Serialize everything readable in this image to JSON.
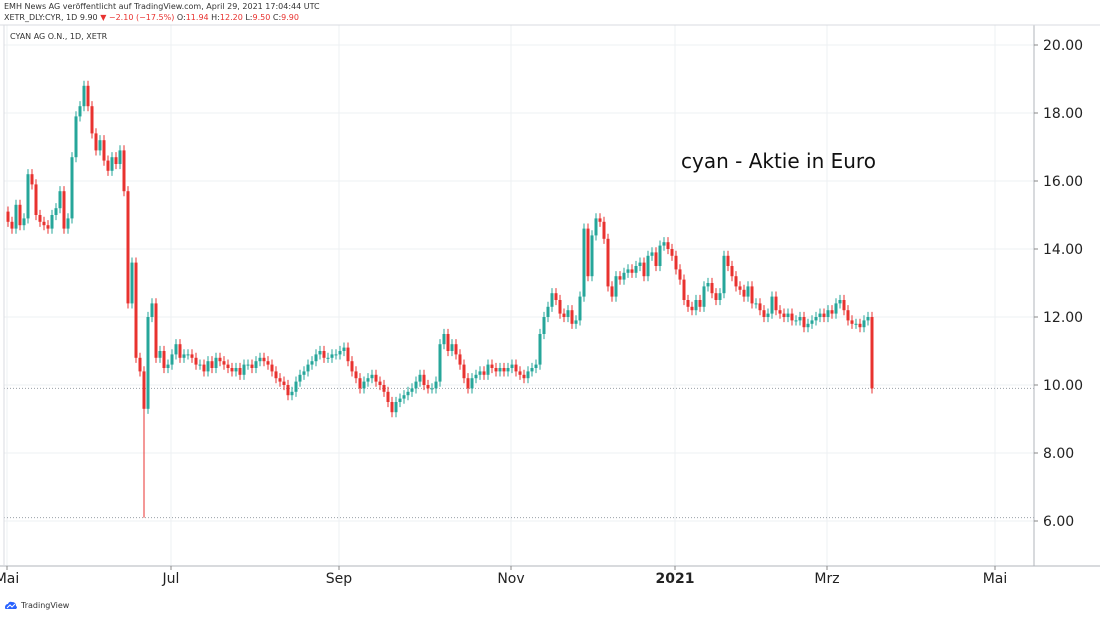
{
  "header": {
    "published": "EMH News AG veröffentlicht auf TradingView.com, April 29, 2021 17:04:44 UTC",
    "symbol_line": "XETR_DLY:CYR, 1D 9.90",
    "change": "−2.10 (−17.5%)",
    "o_label": "O:",
    "o": "11.94",
    "h_label": "H:",
    "h": "12.20",
    "l_label": "L:",
    "l": "9.50",
    "c_label": "C:",
    "c": "9.90"
  },
  "instrument": "CYAN AG O.N., 1D, XETR",
  "footer": {
    "logo_text": "TradingView"
  },
  "colors": {
    "up": "#26a69a",
    "down": "#e8322f",
    "grid": "#eef0f3",
    "axis": "#555555"
  },
  "chart_data": {
    "type": "candlestick",
    "title": "cyan - Aktie in Euro",
    "y_ticks": [
      "20.00",
      "18.00",
      "16.00",
      "14.00",
      "12.00",
      "10.00",
      "8.00",
      "6.00"
    ],
    "ylim": [
      5.0,
      20.5
    ],
    "x_labels": [
      {
        "label": "Mai",
        "bar": 0
      },
      {
        "label": "Jul",
        "bar": 41
      },
      {
        "label": "Sep",
        "bar": 83
      },
      {
        "label": "Nov",
        "bar": 126
      },
      {
        "label": "2021",
        "bar": 167,
        "bold": true
      },
      {
        "label": "Mrz",
        "bar": 205
      },
      {
        "label": "Mai",
        "bar": 247
      }
    ],
    "reference_lines": [
      9.9,
      6.1
    ],
    "closes": [
      14.8,
      14.6,
      15.3,
      14.7,
      14.9,
      16.2,
      15.9,
      15.0,
      14.8,
      14.7,
      14.6,
      15.0,
      15.2,
      15.7,
      14.6,
      14.9,
      16.7,
      17.9,
      18.2,
      18.8,
      18.2,
      17.4,
      16.9,
      17.2,
      16.6,
      16.3,
      16.7,
      16.5,
      16.9,
      15.7,
      12.4,
      13.6,
      10.8,
      10.4,
      9.3,
      12.0,
      12.4,
      10.8,
      11.0,
      10.5,
      10.6,
      10.9,
      11.2,
      10.8,
      10.9,
      10.9,
      10.8,
      10.6,
      10.6,
      10.4,
      10.7,
      10.5,
      10.8,
      10.7,
      10.6,
      10.5,
      10.4,
      10.5,
      10.3,
      10.6,
      10.6,
      10.5,
      10.7,
      10.8,
      10.7,
      10.6,
      10.4,
      10.2,
      10.1,
      10.0,
      9.7,
      9.8,
      10.1,
      10.3,
      10.4,
      10.6,
      10.7,
      10.9,
      11.0,
      10.8,
      10.8,
      10.9,
      10.9,
      11.0,
      11.1,
      10.7,
      10.4,
      10.2,
      9.9,
      10.1,
      10.2,
      10.3,
      10.1,
      10.0,
      9.8,
      9.5,
      9.2,
      9.5,
      9.6,
      9.7,
      9.8,
      9.9,
      10.1,
      10.3,
      10.0,
      9.9,
      9.9,
      10.1,
      11.2,
      11.5,
      11.0,
      11.2,
      10.9,
      10.6,
      10.2,
      9.9,
      10.2,
      10.3,
      10.4,
      10.3,
      10.6,
      10.5,
      10.4,
      10.5,
      10.4,
      10.5,
      10.6,
      10.4,
      10.3,
      10.2,
      10.4,
      10.5,
      10.6,
      11.5,
      12.0,
      12.3,
      12.7,
      12.5,
      12.1,
      12.0,
      12.2,
      11.8,
      11.9,
      12.6,
      14.6,
      13.2,
      14.4,
      14.9,
      14.8,
      14.3,
      12.9,
      12.6,
      13.2,
      13.1,
      13.3,
      13.4,
      13.3,
      13.5,
      13.6,
      13.2,
      13.8,
      13.9,
      13.5,
      14.1,
      14.2,
      14.0,
      13.8,
      13.4,
      13.1,
      12.5,
      12.3,
      12.2,
      12.5,
      12.3,
      12.9,
      13.0,
      12.7,
      12.5,
      12.7,
      13.8,
      13.5,
      13.2,
      12.9,
      12.8,
      12.6,
      12.9,
      12.4,
      12.4,
      12.2,
      12.0,
      12.1,
      12.6,
      12.2,
      12.1,
      12.0,
      12.1,
      11.9,
      11.9,
      12.0,
      11.7,
      11.8,
      11.9,
      12.0,
      12.1,
      12.0,
      12.2,
      12.1,
      12.4,
      12.5,
      12.2,
      11.9,
      11.8,
      11.8,
      11.7,
      11.9,
      12.0,
      9.9
    ]
  }
}
